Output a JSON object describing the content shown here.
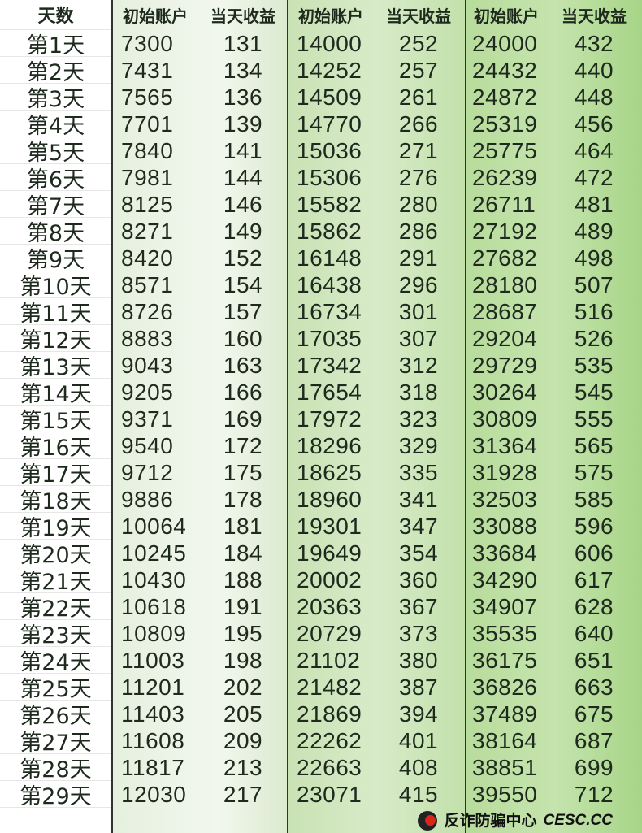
{
  "table": {
    "headers": [
      "天数",
      "初始账户",
      "当天收益",
      "初始账户",
      "当天收益",
      "初始账户",
      "当天收益"
    ],
    "rows": [
      [
        "第1天",
        "7300",
        "131",
        "14000",
        "252",
        "24000",
        "432"
      ],
      [
        "第2天",
        "7431",
        "134",
        "14252",
        "257",
        "24432",
        "440"
      ],
      [
        "第3天",
        "7565",
        "136",
        "14509",
        "261",
        "24872",
        "448"
      ],
      [
        "第4天",
        "7701",
        "139",
        "14770",
        "266",
        "25319",
        "456"
      ],
      [
        "第5天",
        "7840",
        "141",
        "15036",
        "271",
        "25775",
        "464"
      ],
      [
        "第6天",
        "7981",
        "144",
        "15306",
        "276",
        "26239",
        "472"
      ],
      [
        "第7天",
        "8125",
        "146",
        "15582",
        "280",
        "26711",
        "481"
      ],
      [
        "第8天",
        "8271",
        "149",
        "15862",
        "286",
        "27192",
        "489"
      ],
      [
        "第9天",
        "8420",
        "152",
        "16148",
        "291",
        "27682",
        "498"
      ],
      [
        "第10天",
        "8571",
        "154",
        "16438",
        "296",
        "28180",
        "507"
      ],
      [
        "第11天",
        "8726",
        "157",
        "16734",
        "301",
        "28687",
        "516"
      ],
      [
        "第12天",
        "8883",
        "160",
        "17035",
        "307",
        "29204",
        "526"
      ],
      [
        "第13天",
        "9043",
        "163",
        "17342",
        "312",
        "29729",
        "535"
      ],
      [
        "第14天",
        "9205",
        "166",
        "17654",
        "318",
        "30264",
        "545"
      ],
      [
        "第15天",
        "9371",
        "169",
        "17972",
        "323",
        "30809",
        "555"
      ],
      [
        "第16天",
        "9540",
        "172",
        "18296",
        "329",
        "31364",
        "565"
      ],
      [
        "第17天",
        "9712",
        "175",
        "18625",
        "335",
        "31928",
        "575"
      ],
      [
        "第18天",
        "9886",
        "178",
        "18960",
        "341",
        "32503",
        "585"
      ],
      [
        "第19天",
        "10064",
        "181",
        "19301",
        "347",
        "33088",
        "596"
      ],
      [
        "第20天",
        "10245",
        "184",
        "19649",
        "354",
        "33684",
        "606"
      ],
      [
        "第21天",
        "10430",
        "188",
        "20002",
        "360",
        "34290",
        "617"
      ],
      [
        "第22天",
        "10618",
        "191",
        "20363",
        "367",
        "34907",
        "628"
      ],
      [
        "第23天",
        "10809",
        "195",
        "20729",
        "373",
        "35535",
        "640"
      ],
      [
        "第24天",
        "11003",
        "198",
        "21102",
        "380",
        "36175",
        "651"
      ],
      [
        "第25天",
        "11201",
        "202",
        "21482",
        "387",
        "36826",
        "663"
      ],
      [
        "第26天",
        "11403",
        "205",
        "21869",
        "394",
        "37489",
        "675"
      ],
      [
        "第27天",
        "11608",
        "209",
        "22262",
        "401",
        "38164",
        "687"
      ],
      [
        "第28天",
        "11817",
        "213",
        "22663",
        "408",
        "38851",
        "699"
      ],
      [
        "第29天",
        "12030",
        "217",
        "23071",
        "415",
        "39550",
        "712"
      ]
    ]
  },
  "watermark": {
    "text": "反诈防骗中心",
    "domain": "CESC.CC",
    "logo_icon": "cesc-logo-icon"
  },
  "colors": {
    "group1": "#e6f0de",
    "group2": "#c9e2b4",
    "group3": "#b8dc9c"
  }
}
